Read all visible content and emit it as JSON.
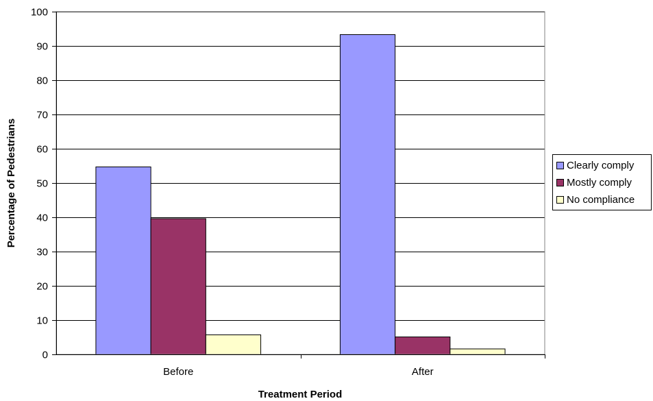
{
  "chart_data": {
    "type": "bar",
    "categories": [
      "Before",
      "After"
    ],
    "series": [
      {
        "name": "Clearly comply",
        "values": [
          54.7,
          93.3
        ],
        "color": "#9999FF"
      },
      {
        "name": "Mostly comply",
        "values": [
          39.6,
          5.1
        ],
        "color": "#993366"
      },
      {
        "name": "No compliance",
        "values": [
          5.7,
          1.6
        ],
        "color": "#FFFFCC"
      }
    ],
    "xlabel": "Treatment Period",
    "ylabel": "Percentage of Pedestrians",
    "ylim": [
      0,
      100
    ],
    "yticks": [
      "0",
      "10",
      "20",
      "30",
      "40",
      "50",
      "60",
      "70",
      "80",
      "90",
      "100"
    ],
    "grid": true,
    "legend_position": "right"
  }
}
